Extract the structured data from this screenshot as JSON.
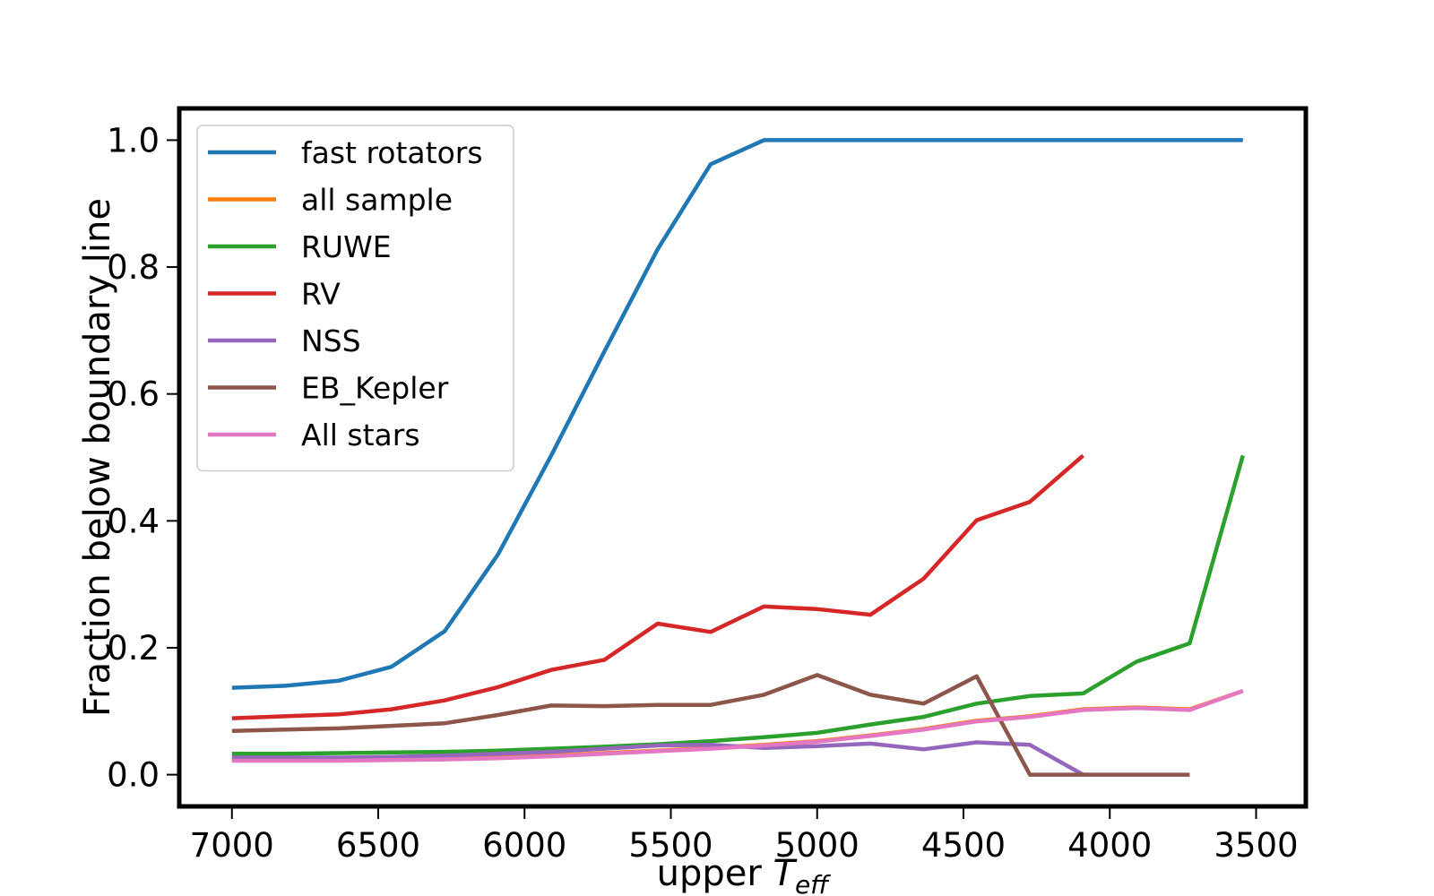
{
  "chart_data": {
    "type": "line",
    "title": "",
    "xlabel": "upper ",
    "xlabel_math_main": "T",
    "xlabel_math_sub": "eff",
    "ylabel": "Fraction below boundary line",
    "xlim": [
      7180,
      3330
    ],
    "ylim": [
      -0.05,
      1.05
    ],
    "x_reversed": true,
    "grid": false,
    "legend_position": "upper-left",
    "x_ticks": [
      7000,
      6500,
      6000,
      5500,
      5000,
      4500,
      4000,
      3500
    ],
    "x_tick_labels": [
      "7000",
      "6500",
      "6000",
      "5500",
      "5000",
      "4500",
      "4000",
      "3500"
    ],
    "y_ticks": [
      0.0,
      0.2,
      0.4,
      0.6,
      0.8,
      1.0
    ],
    "y_tick_labels": [
      "0.0",
      "0.2",
      "0.4",
      "0.6",
      "0.8",
      "1.0"
    ],
    "x": [
      7000,
      6818,
      6636,
      6455,
      6273,
      6091,
      5909,
      5727,
      5545,
      5364,
      5182,
      5000,
      4818,
      4636,
      4455,
      4273,
      4091,
      3909,
      3727,
      3545
    ],
    "series": [
      {
        "name": "fast rotators",
        "color": "#1f77b4",
        "values": [
          0.137,
          0.14,
          0.148,
          0.17,
          0.226,
          0.347,
          0.503,
          0.667,
          0.828,
          0.962,
          1.0,
          1.0,
          1.0,
          1.0,
          1.0,
          1.0,
          1.0,
          1.0,
          1.0,
          1.0
        ]
      },
      {
        "name": "all sample",
        "color": "#ff7f0e",
        "values": [
          0.024,
          0.024,
          0.024,
          0.025,
          0.026,
          0.028,
          0.03,
          0.034,
          0.038,
          0.042,
          0.047,
          0.053,
          0.062,
          0.072,
          0.085,
          0.092,
          0.103,
          0.106,
          0.103,
          0.132
        ]
      },
      {
        "name": "RUWE",
        "color": "#2ca02c",
        "values": [
          0.033,
          0.033,
          0.034,
          0.035,
          0.036,
          0.038,
          0.041,
          0.044,
          0.048,
          0.053,
          0.059,
          0.066,
          0.079,
          0.091,
          0.112,
          0.124,
          0.128,
          0.178,
          0.207,
          0.503
        ]
      },
      {
        "name": "RV",
        "color": "#d62728",
        "values": [
          0.089,
          0.092,
          0.095,
          0.103,
          0.117,
          0.138,
          0.165,
          0.181,
          0.238,
          0.225,
          0.265,
          0.261,
          0.252,
          0.309,
          0.401,
          0.43,
          0.503,
          null,
          null,
          null
        ]
      },
      {
        "name": "NSS",
        "color": "#9467bd",
        "values": [
          0.027,
          0.027,
          0.027,
          0.028,
          0.03,
          0.033,
          0.036,
          0.041,
          0.046,
          0.047,
          0.042,
          0.045,
          0.049,
          0.04,
          0.051,
          0.047,
          0.0,
          null,
          null,
          null
        ]
      },
      {
        "name": "EB_Kepler",
        "color": "#8c564b",
        "values": [
          0.069,
          0.071,
          0.073,
          0.077,
          0.081,
          0.094,
          0.109,
          0.108,
          0.11,
          0.11,
          0.126,
          0.157,
          0.126,
          0.112,
          0.155,
          0.0,
          0.0,
          0.0,
          0.0,
          null
        ]
      },
      {
        "name": "All stars",
        "color": "#e377c2",
        "values": [
          0.022,
          0.022,
          0.022,
          0.023,
          0.024,
          0.026,
          0.029,
          0.033,
          0.037,
          0.041,
          0.046,
          0.052,
          0.061,
          0.071,
          0.084,
          0.091,
          0.102,
          0.105,
          0.102,
          0.132
        ]
      }
    ]
  }
}
